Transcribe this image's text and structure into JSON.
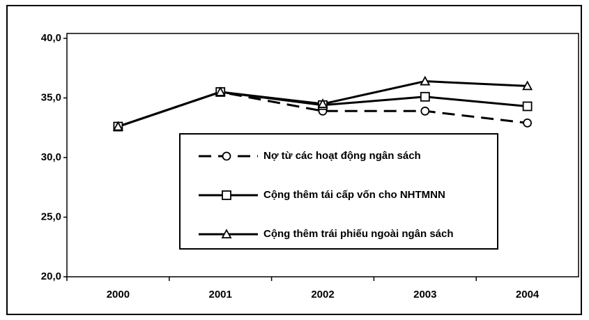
{
  "chart_data": {
    "type": "line",
    "categories": [
      "2000",
      "2001",
      "2002",
      "2003",
      "2004"
    ],
    "series": [
      {
        "name": "Nợ từ các hoạt động ngân sách",
        "color": "#000000",
        "marker": "circle",
        "dashed": true,
        "values": [
          32.6,
          35.5,
          33.9,
          33.9,
          32.9
        ]
      },
      {
        "name": "Cộng thêm tái cấp vốn cho NHTMNN",
        "color": "#000000",
        "marker": "square",
        "dashed": false,
        "values": [
          32.6,
          35.5,
          34.4,
          35.1,
          34.3
        ]
      },
      {
        "name": "Cộng thêm trái phiếu ngoài ngân sách",
        "color": "#000000",
        "marker": "triangle",
        "dashed": false,
        "values": [
          32.6,
          35.5,
          34.5,
          36.4,
          36.0
        ]
      }
    ],
    "ylim": [
      20,
      40
    ],
    "yticks": [
      {
        "value": 20,
        "label": "20,0"
      },
      {
        "value": 25,
        "label": "25,0"
      },
      {
        "value": 30,
        "label": "30,0"
      },
      {
        "value": 35,
        "label": "35,0"
      },
      {
        "value": 40,
        "label": "40,0"
      }
    ]
  }
}
